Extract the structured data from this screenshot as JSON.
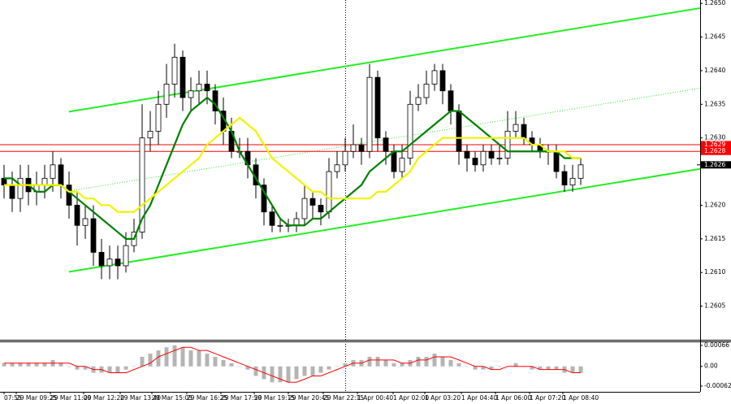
{
  "chart_data": {
    "type": "candlestick",
    "xlim": [
      -0.5,
      85.7
    ],
    "xticks": [
      {
        "value": 0,
        "label": "07:55"
      },
      {
        "value": 1.5,
        "label": "29 Mar 09:25"
      },
      {
        "value": 5.7,
        "label": "29 Mar 11:00"
      },
      {
        "value": 9.8,
        "label": "29 Mar 12:20"
      },
      {
        "value": 14.3,
        "label": "29 Mar 13:40"
      },
      {
        "value": 18.2,
        "label": "29 Mar 15:05"
      },
      {
        "value": 22.5,
        "label": "29 Mar 16:25"
      },
      {
        "value": 26.7,
        "label": "29 Mar 17:50"
      },
      {
        "value": 30.8,
        "label": "29 Mar 19:15"
      },
      {
        "value": 35,
        "label": "29 Mar 20:45"
      },
      {
        "value": 39.3,
        "label": "29 Mar 22:15"
      },
      {
        "value": 43.5,
        "label": "1 Apr 00:40"
      },
      {
        "value": 47.9,
        "label": "1 Apr 02:00"
      },
      {
        "value": 51.8,
        "label": "1 Apr 03:20"
      },
      {
        "value": 56.3,
        "label": "1 Apr 04:40"
      },
      {
        "value": 60.5,
        "label": "1 Apr 06:00"
      },
      {
        "value": 64.7,
        "label": "1 Apr 07:20"
      },
      {
        "value": 68.8,
        "label": "1 Apr 08:40"
      }
    ],
    "ylim": [
      1.26,
      1.26505
    ],
    "yticks": [
      {
        "value": 1.265,
        "label": "1.2650"
      },
      1.2645,
      {
        "value": 1.264,
        "label": "1.2640"
      },
      1.2635,
      {
        "value": 1.263,
        "label": "1.2630"
      },
      {
        "value": 1.262,
        "label": "1.2620"
      },
      1.2615,
      {
        "value": 1.261,
        "label": "1.2610"
      },
      1.2605
    ],
    "open": [
      1.2624,
      1.2623,
      1.2621,
      1.2624,
      1.2622,
      1.2623,
      1.2624,
      1.2626,
      1.2623,
      1.262,
      1.2617,
      1.2618,
      1.2613,
      1.2611,
      1.2612,
      1.2611,
      1.2614,
      1.2616,
      1.263,
      1.2631,
      1.2635,
      1.2638,
      1.2642,
      1.2636,
      1.2637,
      1.2638,
      1.2637,
      1.2634,
      1.2631,
      1.2628,
      1.2628,
      1.2626,
      1.2623,
      1.2619,
      1.2617,
      1.2617,
      1.2617,
      1.2618,
      1.2621,
      1.262,
      1.2619,
      1.2625,
      1.2626,
      1.2628,
      1.2629,
      1.2628,
      1.2639,
      1.263,
      1.2628,
      1.2625,
      1.2627,
      1.2635,
      1.2636,
      1.2638,
      1.264,
      1.2637,
      1.2634,
      1.2628,
      1.2627,
      1.2626,
      1.2628,
      1.2627,
      1.2627,
      1.2631,
      1.2632,
      1.263,
      1.2629,
      1.2628,
      1.2628,
      1.2625,
      1.2623,
      1.2624
    ],
    "high": [
      1.2626,
      1.2625,
      1.2626,
      1.2626,
      1.2625,
      1.2626,
      1.2628,
      1.2627,
      1.2625,
      1.2622,
      1.262,
      1.262,
      1.2615,
      1.2614,
      1.2614,
      1.2616,
      1.2618,
      1.2635,
      1.2634,
      1.2637,
      1.2641,
      1.2644,
      1.2643,
      1.2639,
      1.264,
      1.264,
      1.2638,
      1.2636,
      1.2633,
      1.263,
      1.263,
      1.2627,
      1.2624,
      1.262,
      1.2618,
      1.2618,
      1.2619,
      1.2623,
      1.2622,
      1.2621,
      1.2627,
      1.2628,
      1.263,
      1.2632,
      1.263,
      1.2641,
      1.264,
      1.2631,
      1.2629,
      1.2629,
      1.2637,
      1.2638,
      1.264,
      1.2641,
      1.2641,
      1.2638,
      1.2635,
      1.2629,
      1.2628,
      1.2629,
      1.2629,
      1.2629,
      1.2634,
      1.2634,
      1.2633,
      1.2631,
      1.263,
      1.2629,
      1.2629,
      1.2626,
      1.2626,
      1.2627
    ],
    "low": [
      1.2621,
      1.2619,
      1.2619,
      1.262,
      1.262,
      1.2621,
      1.2622,
      1.2621,
      1.2618,
      1.2614,
      1.2615,
      1.2611,
      1.2609,
      1.2609,
      1.2609,
      1.261,
      1.2613,
      1.2615,
      1.2628,
      1.2629,
      1.2633,
      1.2636,
      1.2634,
      1.2634,
      1.2635,
      1.2635,
      1.2632,
      1.2629,
      1.2627,
      1.2627,
      1.2624,
      1.2621,
      1.2617,
      1.2616,
      1.2616,
      1.2616,
      1.2616,
      1.2617,
      1.2618,
      1.2617,
      1.2618,
      1.2624,
      1.2625,
      1.2627,
      1.2626,
      1.2627,
      1.2628,
      1.2626,
      1.2624,
      1.2624,
      1.2626,
      1.2634,
      1.2635,
      1.2637,
      1.2635,
      1.2632,
      1.2626,
      1.2625,
      1.2625,
      1.2625,
      1.2626,
      1.2626,
      1.2626,
      1.263,
      1.2629,
      1.2628,
      1.2627,
      1.2626,
      1.2624,
      1.2622,
      1.2622,
      1.2623
    ],
    "close": [
      1.2623,
      1.2621,
      1.2624,
      1.2622,
      1.2623,
      1.2624,
      1.2626,
      1.2623,
      1.262,
      1.2617,
      1.2618,
      1.2613,
      1.2611,
      1.2612,
      1.2611,
      1.2614,
      1.2616,
      1.263,
      1.2631,
      1.2635,
      1.2638,
      1.2642,
      1.2636,
      1.2637,
      1.2638,
      1.2637,
      1.2634,
      1.2631,
      1.2628,
      1.2628,
      1.2626,
      1.2623,
      1.2619,
      1.2617,
      1.2617,
      1.2617,
      1.2618,
      1.2621,
      1.262,
      1.2619,
      1.2625,
      1.2626,
      1.2628,
      1.2629,
      1.2628,
      1.2639,
      1.263,
      1.2628,
      1.2625,
      1.2627,
      1.2635,
      1.2636,
      1.2638,
      1.264,
      1.2637,
      1.2634,
      1.2628,
      1.2627,
      1.2626,
      1.2628,
      1.2627,
      1.2627,
      1.2631,
      1.2632,
      1.263,
      1.2629,
      1.2628,
      1.2628,
      1.2625,
      1.2623,
      1.2624,
      1.2626
    ],
    "up_color": "#ffffff",
    "down_color": "#000000",
    "lines": [
      {
        "color": "#008000",
        "values": [
          1.2624,
          1.2624,
          1.2623,
          1.2623,
          1.2622,
          1.2622,
          1.2623,
          1.2623,
          1.2622,
          1.2621,
          1.262,
          1.2619,
          1.2618,
          1.2617,
          1.2616,
          1.2615,
          1.2615,
          1.2618,
          1.262,
          1.2623,
          1.2626,
          1.2629,
          1.2632,
          1.2634,
          1.2635,
          1.2636,
          1.2635,
          1.2633,
          1.2631,
          1.2628,
          1.2626,
          1.2624,
          1.2622,
          1.262,
          1.2618,
          1.2617,
          1.2617,
          1.2617,
          1.2618,
          1.2618,
          1.2619,
          1.262,
          1.2621,
          1.2622,
          1.2623,
          1.2625,
          1.2626,
          1.2627,
          1.2628,
          1.2628,
          1.2629,
          1.263,
          1.2631,
          1.2632,
          1.2633,
          1.2634,
          1.2634,
          1.2633,
          1.2632,
          1.2631,
          1.263,
          1.2629,
          1.2628,
          1.2628,
          1.2628,
          1.2628,
          1.2628,
          1.2628,
          1.2628,
          1.2627,
          1.2627,
          1.2627
        ]
      },
      {
        "color": "#f2f200",
        "values": [
          1.2623,
          1.2623,
          1.2623,
          1.2623,
          1.2623,
          1.2623,
          1.2623,
          1.2623,
          1.2622,
          1.2622,
          1.2621,
          1.2621,
          1.262,
          1.262,
          1.2619,
          1.2619,
          1.2619,
          1.262,
          1.2621,
          1.2622,
          1.2623,
          1.2624,
          1.2625,
          1.2626,
          1.2627,
          1.2629,
          1.263,
          1.2631,
          1.2632,
          1.2633,
          1.2632,
          1.2631,
          1.2629,
          1.2627,
          1.2626,
          1.2625,
          1.2624,
          1.2623,
          1.2622,
          1.2622,
          1.2621,
          1.2621,
          1.2621,
          1.2621,
          1.2621,
          1.2621,
          1.2622,
          1.2622,
          1.2623,
          1.2624,
          1.2625,
          1.2627,
          1.2628,
          1.2629,
          1.263,
          1.263,
          1.263,
          1.263,
          1.263,
          1.263,
          1.263,
          1.263,
          1.263,
          1.263,
          1.263,
          1.2629,
          1.2629,
          1.2628,
          1.2628,
          1.2628,
          1.2627,
          1.2627
        ]
      }
    ],
    "trend_lines": [
      {
        "color": "#22ee22",
        "x": [
          8,
          85.7
        ],
        "values": [
          1.26339,
          1.26493
        ]
      },
      {
        "color": "#22ee22",
        "x": [
          8,
          85.7
        ],
        "values": [
          1.26101,
          1.26254
        ]
      },
      {
        "color": "#22ee22",
        "style": "dotted",
        "x": [
          8,
          85.7
        ],
        "values": [
          1.26221,
          1.26374
        ]
      }
    ],
    "price_lines": [
      {
        "value": 1.2629,
        "label": "1.2629",
        "color": "#ff0000"
      },
      {
        "value": 1.2628,
        "label": "1.2628",
        "color": "#ff0000"
      }
    ],
    "current_price": {
      "value": 1.2626,
      "label": "1.2626"
    },
    "macd": {
      "ylim": [
        -0.0008,
        0.00076
      ],
      "yticks": [
        0.00066,
        {
          "value": 0,
          "label": "0.00"
        },
        -0.00062
      ],
      "histogram_color": "#b4b4b4",
      "signal_color": "#ff0000",
      "histogram": [
        0.0001,
        0.0001,
        0.0001,
        0.0001,
        0.0001,
        0.0001,
        0.0002,
        0.0001,
        0,
        -0.0001,
        -0.0001,
        -0.0002,
        -0.0002,
        -0.0002,
        -0.0002,
        -0.0001,
        0,
        0.0003,
        0.0004,
        0.0005,
        0.0006,
        0.00066,
        0.0006,
        0.0005,
        0.0005,
        0.0004,
        0.0003,
        0.0002,
        0.0001,
        0,
        -0.0001,
        -0.0003,
        -0.0004,
        -0.0005,
        -0.0005,
        -0.0005,
        -0.0004,
        -0.0003,
        -0.0003,
        -0.0002,
        -0.0001,
        0,
        0.0001,
        0.0002,
        0.0002,
        0.0003,
        0.0003,
        0.0002,
        0.0001,
        0.0001,
        0.0002,
        0.0003,
        0.0003,
        0.0004,
        0.0003,
        0.0002,
        0.0001,
        0,
        -0.0001,
        -0.0001,
        -0.0001,
        0,
        0,
        0.0001,
        0,
        -0.0001,
        -0.0001,
        -0.0001,
        -0.0001,
        -0.0002,
        -0.0002,
        -0.0002
      ],
      "signal": [
        0.0001,
        0.0001,
        0.0001,
        0.0001,
        0.0001,
        0.0001,
        0.0001,
        0.0001,
        0.0001,
        0,
        0,
        -0.0001,
        -0.0001,
        -0.0002,
        -0.0002,
        -0.0002,
        -0.0001,
        0,
        0.0001,
        0.0003,
        0.0004,
        0.0005,
        0.0006,
        0.0006,
        0.0005,
        0.0005,
        0.0004,
        0.0003,
        0.0002,
        0.0001,
        0,
        -0.0001,
        -0.0002,
        -0.0003,
        -0.0004,
        -0.0005,
        -0.0005,
        -0.0004,
        -0.0003,
        -0.0003,
        -0.0002,
        -0.0001,
        0,
        0.0001,
        0.0001,
        0.0002,
        0.0002,
        0.0002,
        0.0002,
        0.0001,
        0.0001,
        0.0002,
        0.0002,
        0.0003,
        0.0003,
        0.0003,
        0.0002,
        0.0001,
        0,
        0,
        -0.0001,
        -0.0001,
        0,
        0,
        0,
        0,
        -0.0001,
        -0.0001,
        -0.0001,
        -0.0001,
        -0.0002,
        -0.0002
      ]
    }
  }
}
